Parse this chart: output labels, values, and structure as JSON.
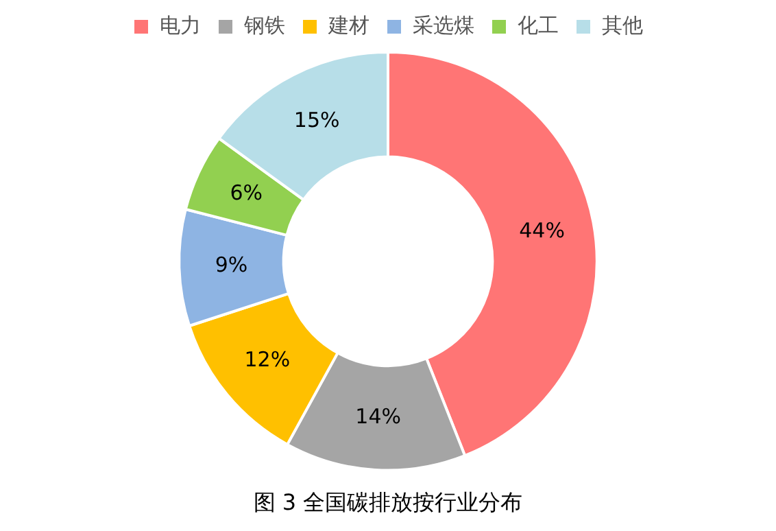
{
  "chart_data": {
    "type": "donut",
    "title": "图 3 全国碳排放按行业分布",
    "categories": [
      "电力",
      "钢铁",
      "建材",
      "采选煤",
      "化工",
      "其他"
    ],
    "values": [
      44,
      14,
      12,
      9,
      6,
      15
    ],
    "value_labels": [
      "44%",
      "14%",
      "12%",
      "9%",
      "6%",
      "15%"
    ],
    "colors": [
      "#ff7575",
      "#a5a5a5",
      "#ffc000",
      "#8eb4e3",
      "#92d050",
      "#b7dee8"
    ],
    "legend": "top"
  }
}
